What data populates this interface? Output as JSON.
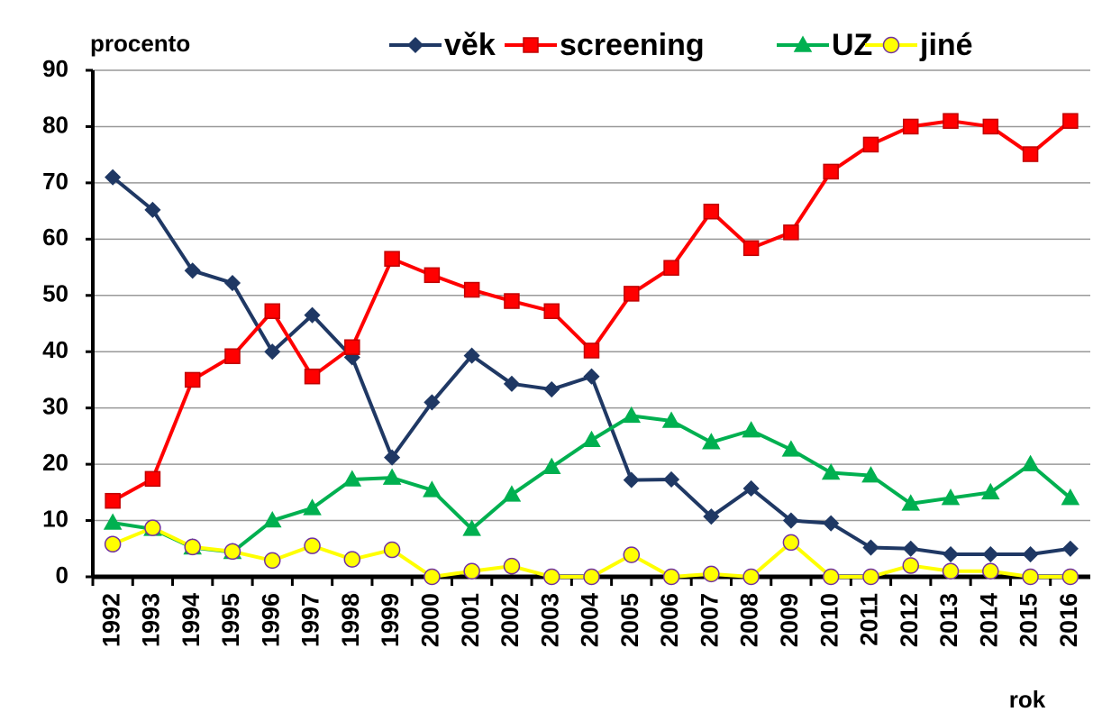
{
  "chart_data": {
    "type": "line",
    "y_label": "procento",
    "x_label": "rok",
    "categories": [
      "1992",
      "1993",
      "1994",
      "1995",
      "1996",
      "1997",
      "1998",
      "1999",
      "2000",
      "2001",
      "2002",
      "2003",
      "2004",
      "2005",
      "2006",
      "2007",
      "2008",
      "2009",
      "2010",
      "2011",
      "2012",
      "2013",
      "2014",
      "2015",
      "2016"
    ],
    "series": [
      {
        "name": "věk",
        "color": "#1f3864",
        "marker": "diamond",
        "values": [
          71,
          65.2,
          54.4,
          52.2,
          40,
          46.5,
          39,
          21.2,
          31,
          39.3,
          34.3,
          33.3,
          35.6,
          17.2,
          17.3,
          10.7,
          15.7,
          10,
          9.5,
          5.2,
          5,
          4,
          4,
          4,
          5
        ]
      },
      {
        "name": "screening",
        "color": "#ff0000",
        "marker": "square",
        "values": [
          13.5,
          17.4,
          35,
          39.2,
          47.2,
          35.6,
          40.8,
          56.5,
          53.6,
          51,
          49,
          47.2,
          40.2,
          50.3,
          54.9,
          64.9,
          58.4,
          61.2,
          72,
          76.8,
          80,
          81,
          80,
          75.1,
          81
        ]
      },
      {
        "name": "UZ",
        "color": "#00b050",
        "marker": "triangle",
        "values": [
          9.6,
          8.5,
          5.2,
          4.4,
          10,
          12.2,
          17.3,
          17.6,
          15.4,
          8.5,
          14.6,
          19.5,
          24.3,
          28.6,
          27.7,
          23.9,
          26,
          22.6,
          18.5,
          18,
          13,
          14,
          15,
          20,
          14
        ]
      },
      {
        "name": "jiné",
        "color": "#ffff00",
        "marker": "circle",
        "values": [
          5.8,
          8.7,
          5.3,
          4.5,
          2.9,
          5.5,
          3.1,
          4.8,
          0,
          1,
          1.9,
          0,
          0,
          3.9,
          0,
          0.5,
          0,
          6.1,
          0,
          0,
          2,
          1,
          1,
          0,
          0
        ]
      }
    ],
    "ylim": [
      0,
      90
    ],
    "yticks": [
      0,
      10,
      20,
      30,
      40,
      50,
      60,
      70,
      80,
      90
    ],
    "grid": true,
    "legend": "top"
  }
}
